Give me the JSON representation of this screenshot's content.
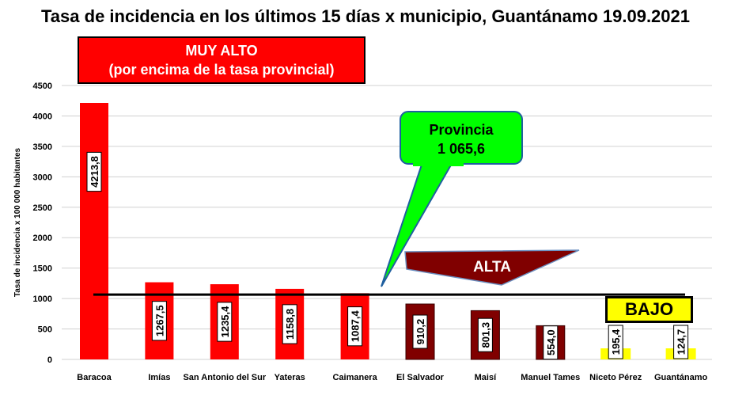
{
  "title": "Tasa de incidencia en los últimos 15 días x municipio, Guantánamo 19.09.2021",
  "callouts": {
    "muy_alto_line1": "MUY ALTO",
    "muy_alto_line2": "(por encima de la tasa provincial)",
    "provincia_label": "Provincia",
    "provincia_value": "1 065,6",
    "alta": "ALTA",
    "bajo": "BAJO"
  },
  "chart_data": {
    "type": "bar",
    "ylabel": "Tasa de incidencia  x 100 000 habitantes",
    "ylim": [
      0,
      4500
    ],
    "yticks": [
      0,
      500,
      1000,
      1500,
      2000,
      2500,
      3000,
      3500,
      4000,
      4500
    ],
    "reference_line": 1065.6,
    "categories": [
      "Baracoa",
      "Imías",
      "San Antonio del Sur",
      "Yateras",
      "Caimanera",
      "El Salvador",
      "Maisí",
      "Manuel Tames",
      "Niceto Pérez",
      "Guantánamo"
    ],
    "values": [
      4213.8,
      1267.5,
      1235.4,
      1158.8,
      1087.4,
      910.2,
      801.3,
      554.0,
      195.4,
      124.7
    ],
    "value_labels": [
      "4213,8",
      "1267,5",
      "1235,4",
      "1158,8",
      "1087,4",
      "910,2",
      "801,3",
      "554,0",
      "195,4",
      "124,7"
    ],
    "colors": {
      "muy_alto": "#ff0000",
      "alta": "#800000",
      "bajo": "#ffff00",
      "provincia_callout": "#00ff00",
      "callout_border": "#1f5f9f"
    },
    "categories_level": [
      "muy_alto",
      "muy_alto",
      "muy_alto",
      "muy_alto",
      "muy_alto",
      "alta",
      "alta",
      "alta",
      "bajo",
      "bajo"
    ]
  }
}
